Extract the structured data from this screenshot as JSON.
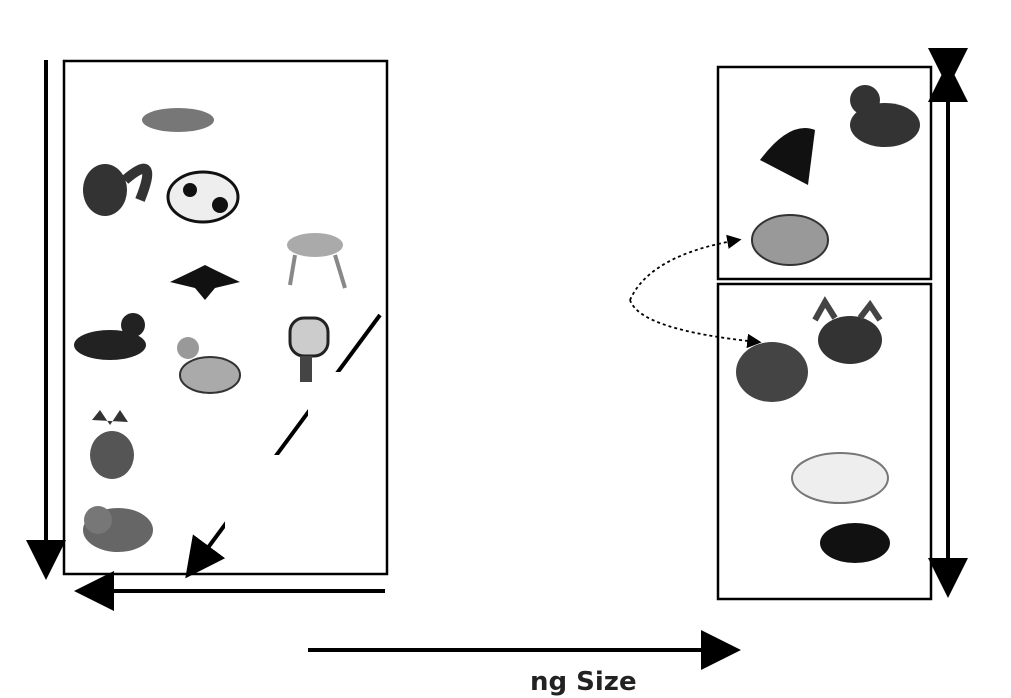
{
  "caption": "ng Size"
}
